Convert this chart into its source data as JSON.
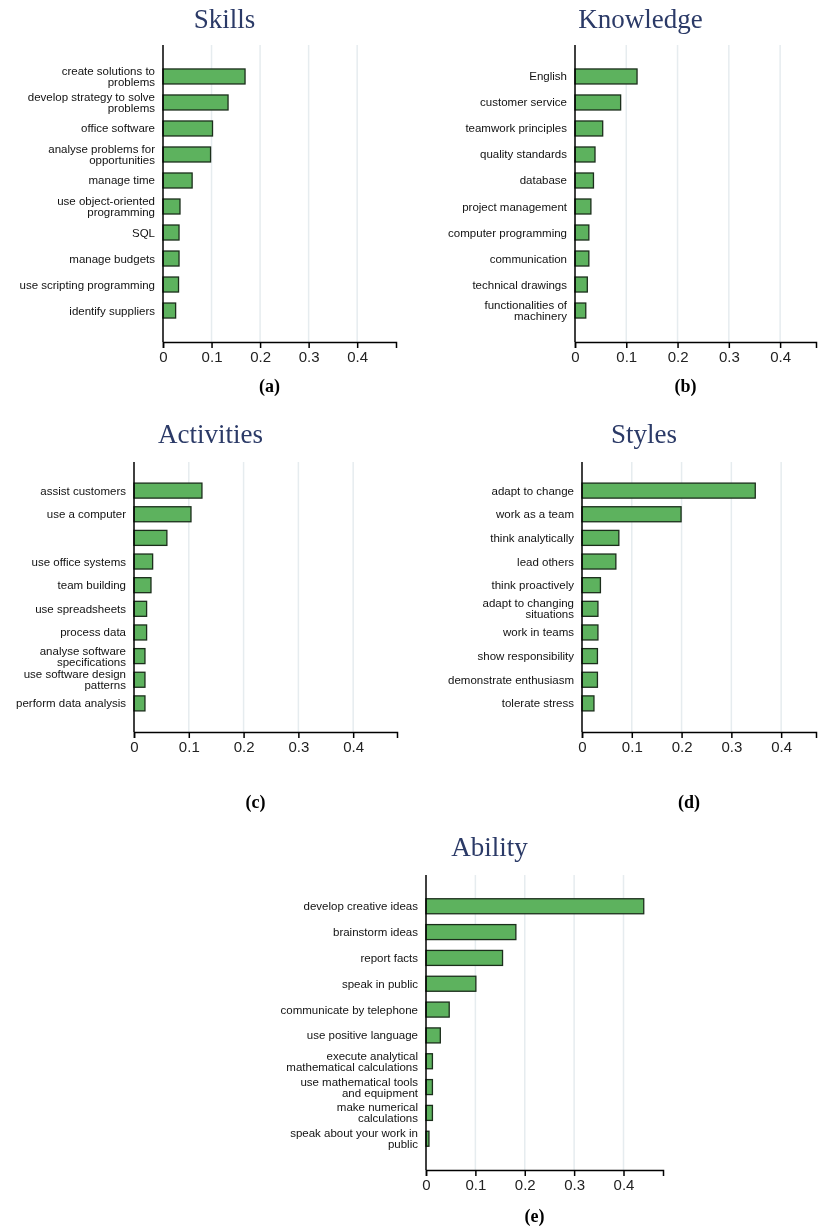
{
  "chart_data": [
    {
      "type": "bar",
      "orientation": "horizontal",
      "title": "Skills",
      "xlabel": "(a)",
      "color": "#5db25e",
      "grid": "x",
      "xlim": [
        0,
        0.48
      ],
      "xticks": [
        0,
        0.1,
        0.2,
        0.3,
        0.4
      ],
      "categories": [
        "create solutions to problems",
        "develop strategy to solve problems",
        "office software",
        "analyse problems for opportunities",
        "manage time",
        "use object-oriented programming",
        "SQL",
        "manage budgets",
        "use scripting programming",
        "identify suppliers"
      ],
      "values": [
        0.169,
        0.134,
        0.102,
        0.098,
        0.06,
        0.035,
        0.033,
        0.033,
        0.032,
        0.026
      ]
    },
    {
      "type": "bar",
      "orientation": "horizontal",
      "title": "Knowledge",
      "xlabel": "(b)",
      "color": "#5db25e",
      "grid": "x",
      "xlim": [
        0,
        0.47
      ],
      "xticks": [
        0,
        0.1,
        0.2,
        0.3,
        0.4
      ],
      "categories": [
        "English",
        "customer service",
        "teamwork principles",
        "quality standards",
        "database",
        "project management",
        "computer programming",
        "communication",
        "technical drawings",
        "functionalities of machinery"
      ],
      "values": [
        0.121,
        0.089,
        0.054,
        0.039,
        0.036,
        0.031,
        0.027,
        0.027,
        0.024,
        0.021
      ]
    },
    {
      "type": "bar",
      "orientation": "horizontal",
      "title": "Activities",
      "xlabel": "(c)",
      "color": "#5db25e",
      "grid": "x",
      "xlim": [
        0,
        0.48
      ],
      "xticks": [
        0,
        0.1,
        0.2,
        0.3,
        0.4
      ],
      "categories": [
        "assist customers",
        "use a computer",
        null,
        "use office systems",
        "team building",
        "use spreadsheets",
        "process data",
        "analyse software specifications",
        "use software design patterns",
        "perform data analysis"
      ],
      "values": [
        0.124,
        0.104,
        0.06,
        0.034,
        0.031,
        0.023,
        0.023,
        0.02,
        0.02,
        0.02
      ]
    },
    {
      "type": "bar",
      "orientation": "horizontal",
      "title": "Styles",
      "xlabel": "(d)",
      "color": "#5db25e",
      "grid": "x",
      "xlim": [
        0,
        0.47
      ],
      "xticks": [
        0,
        0.1,
        0.2,
        0.3,
        0.4
      ],
      "categories": [
        "adapt to change",
        "work as a team",
        "think analytically",
        "lead others",
        "think proactively",
        "adapt to changing situations",
        "work in teams",
        "show responsibility",
        "demonstrate enthusiasm",
        "tolerate stress"
      ],
      "values": [
        0.348,
        0.199,
        0.074,
        0.068,
        0.037,
        0.032,
        0.032,
        0.031,
        0.031,
        0.024
      ]
    },
    {
      "type": "bar",
      "orientation": "horizontal",
      "title": "Ability",
      "xlabel": "(e)",
      "color": "#5db25e",
      "grid": "x",
      "xlim": [
        0,
        0.48
      ],
      "xticks": [
        0,
        0.1,
        0.2,
        0.3,
        0.4
      ],
      "categories": [
        "develop creative ideas",
        "brainstorm ideas",
        "report facts",
        "speak in public",
        "communicate by telephone",
        "use positive language",
        "execute analytical mathematical calculations",
        "use mathematical tools and equipment",
        "make numerical calculations",
        "speak about your work in public"
      ],
      "values": [
        0.441,
        0.182,
        0.155,
        0.101,
        0.047,
        0.029,
        0.013,
        0.013,
        0.013,
        0.006
      ]
    }
  ]
}
